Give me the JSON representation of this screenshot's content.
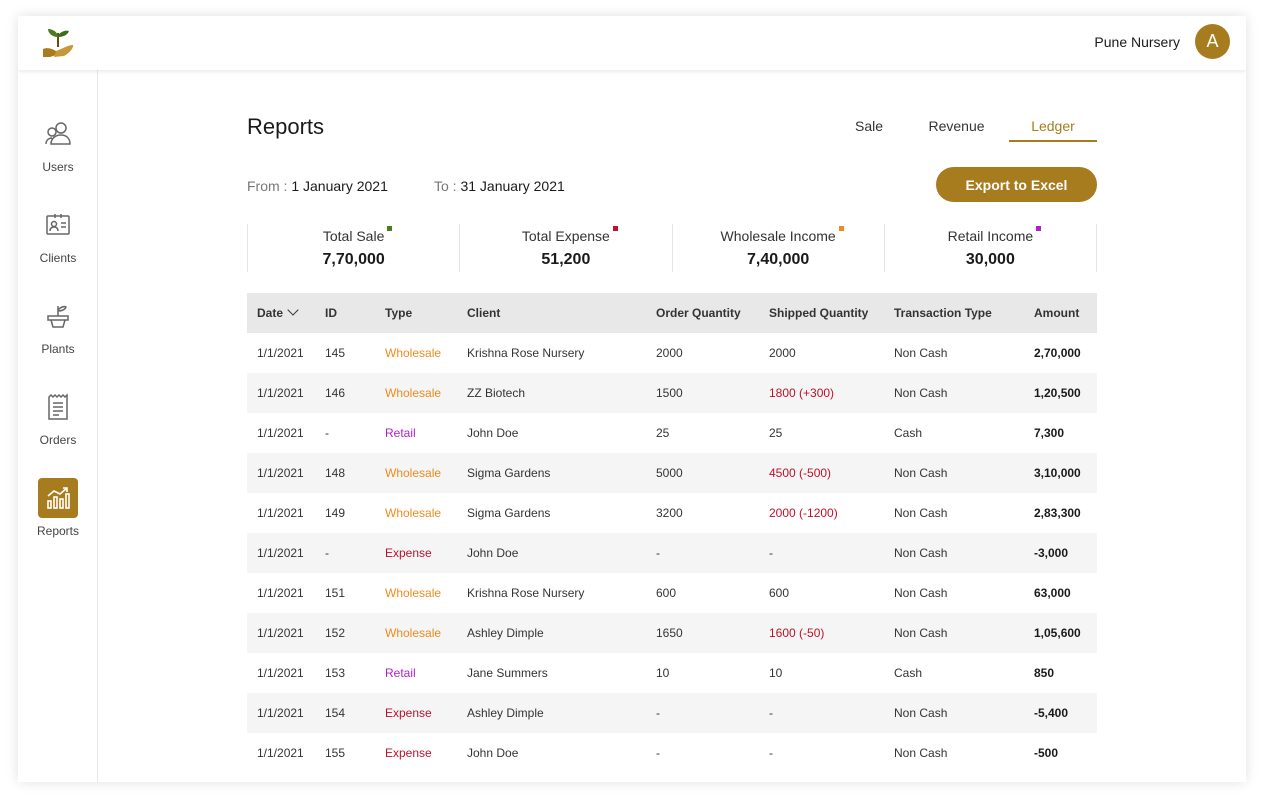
{
  "header": {
    "org_name": "Pune Nursery",
    "avatar_initial": "A"
  },
  "sidebar": {
    "items": [
      {
        "label": "Users",
        "icon": "users-icon"
      },
      {
        "label": "Clients",
        "icon": "clients-icon"
      },
      {
        "label": "Plants",
        "icon": "plant-icon"
      },
      {
        "label": "Orders",
        "icon": "orders-icon"
      },
      {
        "label": "Reports",
        "icon": "reports-icon",
        "active": true
      }
    ]
  },
  "page": {
    "title": "Reports",
    "tabs": [
      "Sale",
      "Revenue",
      "Ledger"
    ],
    "active_tab": "Ledger",
    "from_label": "From :",
    "from_value": "1 January 2021",
    "to_label": "To :",
    "to_value": "31 January 2021",
    "export_label": "Export to Excel"
  },
  "summary": [
    {
      "label": "Total Sale",
      "value": "7,70,000",
      "color": "#4a7d1e"
    },
    {
      "label": "Total Expense",
      "value": "51,200",
      "color": "#c0102a"
    },
    {
      "label": "Wholesale Income",
      "value": "7,40,000",
      "color": "#f08a1c"
    },
    {
      "label": "Retail Income",
      "value": "30,000",
      "color": "#b020c8"
    }
  ],
  "table": {
    "columns": [
      "Date",
      "ID",
      "Type",
      "Client",
      "Order Quantity",
      "Shipped Quantity",
      "Transaction Type",
      "Amount"
    ],
    "rows": [
      [
        "1/1/2021",
        "145",
        "Wholesale",
        "Krishna Rose Nursery",
        "2000",
        "2000",
        "Non Cash",
        "2,70,000"
      ],
      [
        "1/1/2021",
        "146",
        "Wholesale",
        "ZZ Biotech",
        "1500",
        "1800 (+300)",
        "Non Cash",
        "1,20,500"
      ],
      [
        "1/1/2021",
        "-",
        "Retail",
        "John Doe",
        "25",
        "25",
        "Cash",
        "7,300"
      ],
      [
        "1/1/2021",
        "148",
        "Wholesale",
        "Sigma Gardens",
        "5000",
        "4500 (-500)",
        "Non Cash",
        "3,10,000"
      ],
      [
        "1/1/2021",
        "149",
        "Wholesale",
        "Sigma Gardens",
        "3200",
        "2000 (-1200)",
        "Non Cash",
        "2,83,300"
      ],
      [
        "1/1/2021",
        "-",
        "Expense",
        "John Doe",
        "-",
        "-",
        "Non Cash",
        "-3,000"
      ],
      [
        "1/1/2021",
        "151",
        "Wholesale",
        "Krishna Rose Nursery",
        "600",
        "600",
        "Non Cash",
        "63,000"
      ],
      [
        "1/1/2021",
        "152",
        "Wholesale",
        "Ashley Dimple",
        "1650",
        "1600 (-50)",
        "Non Cash",
        "1,05,600"
      ],
      [
        "1/1/2021",
        "153",
        "Retail",
        "Jane Summers",
        "10",
        "10",
        "Cash",
        "850"
      ],
      [
        "1/1/2021",
        "154",
        "Expense",
        "Ashley Dimple",
        "-",
        "-",
        "Non Cash",
        "-5,400"
      ],
      [
        "1/1/2021",
        "155",
        "Expense",
        "John Doe",
        "-",
        "-",
        "Non Cash",
        "-500"
      ]
    ]
  },
  "colors": {
    "accent": "#a67c1f",
    "wholesale": "#f08a1c",
    "retail": "#b020c8",
    "expense": "#c0102a",
    "shipped_diff": "#c0102a"
  }
}
